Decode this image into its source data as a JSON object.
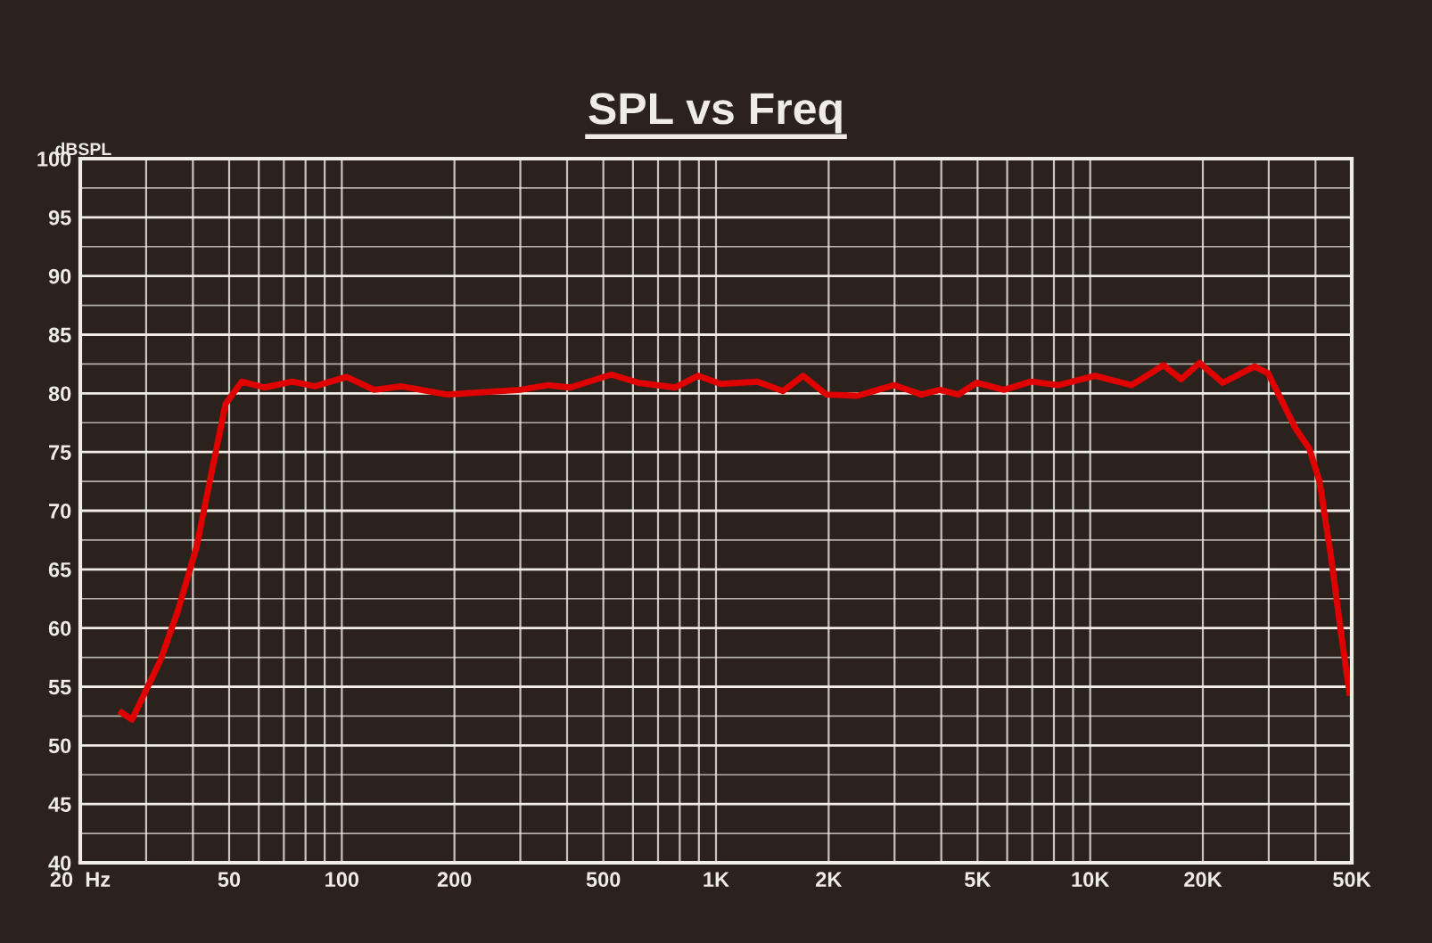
{
  "chart_data": {
    "type": "line",
    "title": "SPL vs Freq",
    "ylabel": "dBSPL",
    "x": [
      25.8,
      27.5,
      32.8,
      36.4,
      40.9,
      44.7,
      48.9,
      54,
      62.2,
      73.7,
      84.7,
      103,
      122,
      144,
      191,
      300,
      355,
      408,
      525,
      621,
      778,
      895,
      1030,
      1290,
      1510,
      1710,
      1970,
      2390,
      2990,
      3540,
      3960,
      4440,
      4970,
      5880,
      6950,
      8220,
      10300,
      12900,
      15700,
      17500,
      19600,
      22600,
      27500,
      29900,
      35400,
      38500,
      41000,
      44100,
      46700,
      49300
    ],
    "series": [
      {
        "color": "#e00000",
        "values": [
          52.8,
          52.2,
          57.3,
          61.4,
          66.9,
          73,
          79.1,
          81.0,
          80.5,
          81.0,
          80.6,
          81.4,
          80.3,
          80.6,
          79.9,
          80.3,
          80.7,
          80.5,
          81.6,
          80.9,
          80.5,
          81.5,
          80.8,
          81.0,
          80.2,
          81.5,
          79.9,
          79.8,
          80.7,
          79.9,
          80.3,
          79.9,
          80.9,
          80.3,
          81.0,
          80.7,
          81.5,
          80.7,
          82.4,
          81.2,
          82.6,
          80.9,
          82.3,
          81.7,
          77.0,
          75.3,
          72.5,
          65.9,
          59.8,
          54.5
        ]
      }
    ],
    "log": "x",
    "xlim": [
      20,
      50000
    ],
    "xticks": [
      {
        "value": 20,
        "label": "20  Hz"
      },
      50,
      100,
      200,
      500,
      {
        "value": 1000,
        "label": "1K"
      },
      {
        "value": 2000,
        "label": "2K"
      },
      {
        "value": 5000,
        "label": "5K"
      },
      {
        "value": 10000,
        "label": "10K"
      },
      {
        "value": 20000,
        "label": "20K"
      },
      {
        "value": 50000,
        "label": "50K"
      }
    ],
    "ylim": [
      40,
      100
    ],
    "yticks": [
      40,
      45,
      50,
      55,
      60,
      65,
      70,
      75,
      80,
      85,
      90,
      95,
      100
    ],
    "grid": true,
    "marker": "none",
    "line_style": "solid",
    "legend": false
  }
}
